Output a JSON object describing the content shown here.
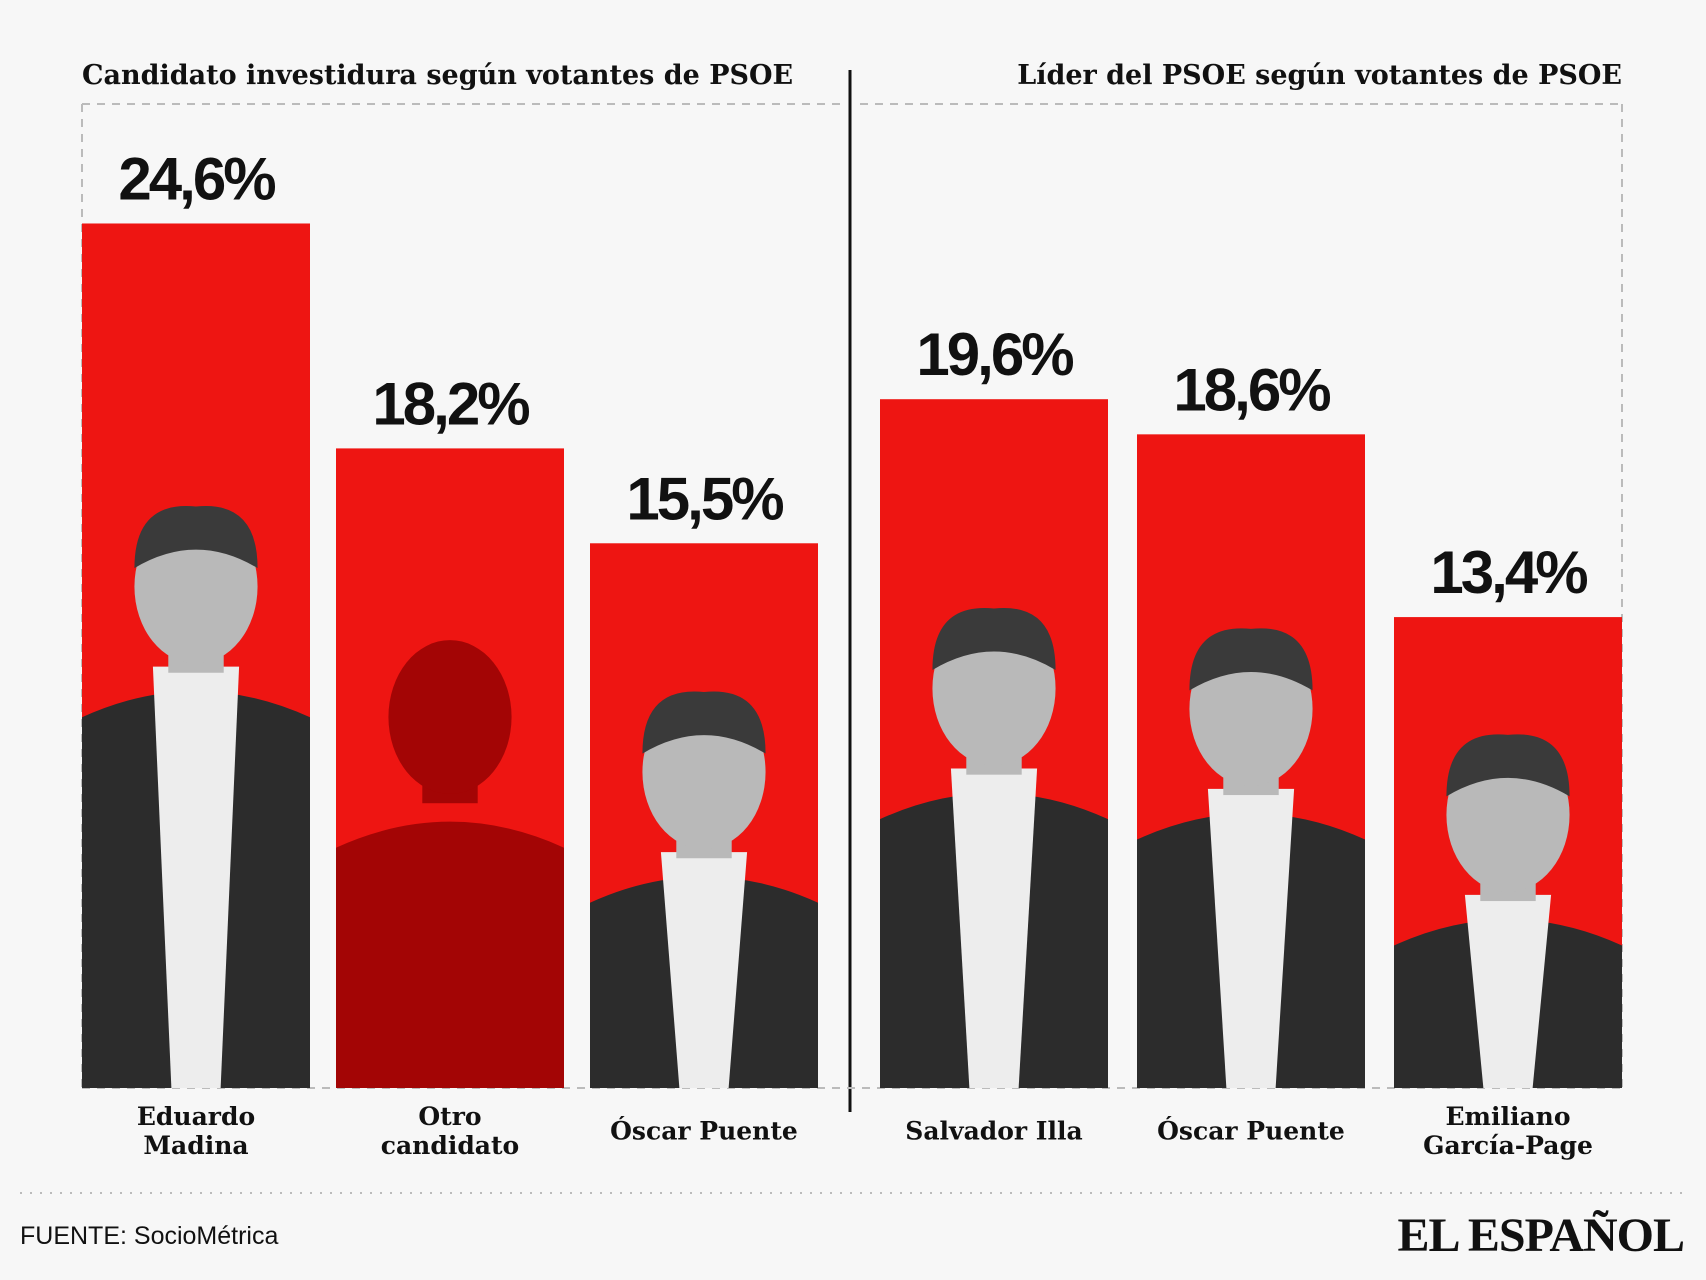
{
  "chart_data": [
    {
      "type": "bar",
      "title": "Candidato investidura según votantes de PSOE",
      "categories": [
        "Eduardo\nMadina",
        "Otro\ncandidato",
        "Óscar Puente"
      ],
      "values": [
        24.6,
        18.2,
        15.5
      ],
      "value_labels": [
        "24,6%",
        "18,2%",
        "15,5%"
      ],
      "color": "#ee1512",
      "ylim": [
        0,
        28
      ]
    },
    {
      "type": "bar",
      "title": "Líder del PSOE según votantes de PSOE",
      "categories": [
        "Salvador Illa",
        "Óscar Puente",
        "Emiliano\nGarcía-Page"
      ],
      "values": [
        19.6,
        18.6,
        13.4
      ],
      "value_labels": [
        "19,6%",
        "18,6%",
        "13,4%"
      ],
      "color": "#ee1512",
      "ylim": [
        0,
        28
      ]
    }
  ],
  "source": "FUENTE: SocioMétrica",
  "logo": "EL ESPAÑOL"
}
